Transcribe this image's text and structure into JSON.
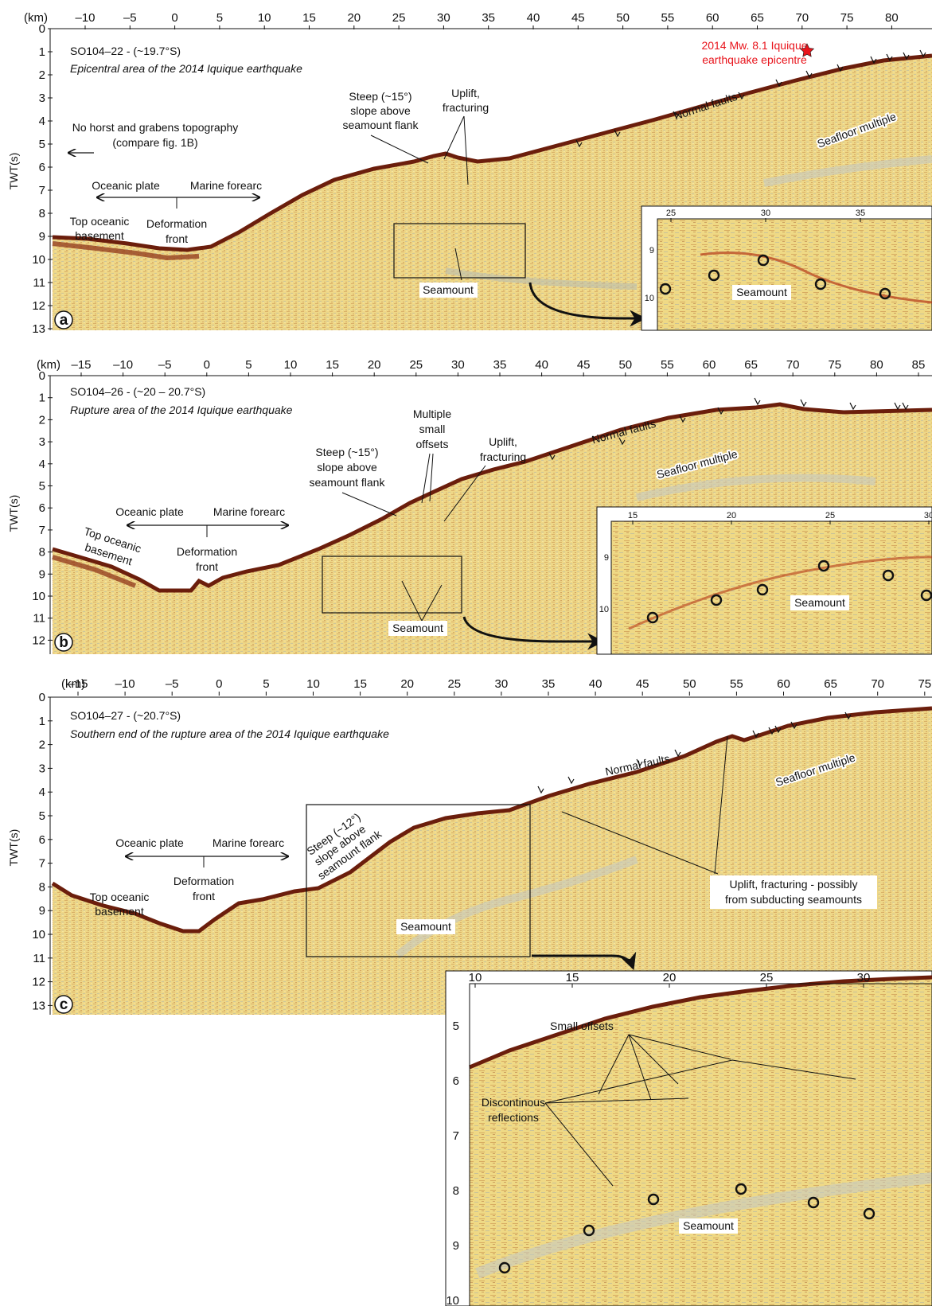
{
  "colors": {
    "seismic_base": "#eed787",
    "seismic_dark": "#8a3a16",
    "seafloor": "#6b1e0c",
    "annotation_red": "#e8131b",
    "ink": "#111111"
  },
  "panels": [
    {
      "letter": "a",
      "id": "SO104–22 - (~19.7°S)",
      "subtitle": "Epicentral area of the 2014 Iquique earthquake",
      "km_unit": "(km)",
      "km_ticks": [
        "–10",
        "–5",
        "0",
        "5",
        "10",
        "15",
        "20",
        "25",
        "30",
        "35",
        "40",
        "45",
        "50",
        "55",
        "60",
        "65",
        "70",
        "75",
        "80"
      ],
      "twt_ticks": [
        "0",
        "1",
        "2",
        "3",
        "4",
        "5",
        "6",
        "7",
        "8",
        "9",
        "10",
        "11",
        "12",
        "13"
      ],
      "ylabel": "TWT(s)",
      "labels": {
        "epicentre_1": "2014 Mw. 8.1 Iquique",
        "epicentre_2": "earthquake epicentre",
        "uplift_1": "Uplift,",
        "uplift_2": "fracturing",
        "steep_1": "Steep (~15°)",
        "steep_2": "slope above",
        "steep_3": "seamount flank",
        "normal_faults": "Normal faults",
        "seafloor_multiple": "Seafloor multiple",
        "no_horst_1": "No horst and grabens topography",
        "no_horst_2": "(compare fig. 1B)",
        "oceanic_plate": "Oceanic plate",
        "marine_forearc": "Marine forearc",
        "top_oceanic_1": "Top oceanic",
        "top_oceanic_2": "basement",
        "deformation_1": "Deformation",
        "deformation_2": "front",
        "seamount": "Seamount"
      },
      "inset": {
        "x_ticks": [
          "25",
          "30",
          "35"
        ],
        "y_ticks": [
          "9",
          "10"
        ],
        "seamount": "Seamount"
      }
    },
    {
      "letter": "b",
      "id": "SO104–26 - (~20 – 20.7°S)",
      "subtitle": "Rupture area of the 2014 Iquique earthquake",
      "km_unit": "(km)",
      "km_ticks": [
        "–15",
        "–10",
        "–5",
        "0",
        "5",
        "10",
        "15",
        "20",
        "25",
        "30",
        "35",
        "40",
        "45",
        "50",
        "55",
        "60",
        "65",
        "70",
        "75",
        "80",
        "85"
      ],
      "twt_ticks": [
        "0",
        "1",
        "2",
        "3",
        "4",
        "5",
        "6",
        "7",
        "8",
        "9",
        "10",
        "11",
        "12"
      ],
      "ylabel": "TWT(s)",
      "labels": {
        "multiple_1": "Multiple",
        "multiple_2": "small",
        "multiple_3": "offsets",
        "uplift_1": "Uplift,",
        "uplift_2": "fracturing",
        "steep_1": "Steep (~15°)",
        "steep_2": "slope above",
        "steep_3": "seamount flank",
        "normal_faults": "Normal faults",
        "seafloor_multiple": "Seafloor multiple",
        "oceanic_plate": "Oceanic plate",
        "marine_forearc": "Marine forearc",
        "top_oceanic_1": "Top oceanic",
        "top_oceanic_2": "basement",
        "deformation_1": "Deformation",
        "deformation_2": "front",
        "seamount": "Seamount"
      },
      "inset": {
        "x_ticks": [
          "15",
          "20",
          "25",
          "30"
        ],
        "y_ticks": [
          "9",
          "10"
        ],
        "seamount": "Seamount"
      }
    },
    {
      "letter": "c",
      "id": "SO104–27 - (~20.7°S)",
      "subtitle": "Southern end of the rupture area of the 2014 Iquique earthquake",
      "km_unit": "(km)",
      "km_ticks": [
        "–15",
        "–10",
        "–5",
        "0",
        "5",
        "10",
        "15",
        "20",
        "25",
        "30",
        "35",
        "40",
        "45",
        "50",
        "55",
        "60",
        "65",
        "70",
        "75"
      ],
      "twt_ticks": [
        "0",
        "1",
        "2",
        "3",
        "4",
        "5",
        "6",
        "7",
        "8",
        "9",
        "10",
        "11",
        "12",
        "13"
      ],
      "ylabel": "TWT(s)",
      "labels": {
        "normal_faults": "Normal faults",
        "seafloor_multiple": "Seafloor multiple",
        "steep_1": "Steep (~12°)",
        "steep_2": "slope above",
        "steep_3": "seamount flank",
        "oceanic_plate": "Oceanic plate",
        "marine_forearc": "Marine forearc",
        "top_oceanic_1": "Top oceanic",
        "top_oceanic_2": "basement",
        "deformation_1": "Deformation",
        "deformation_2": "front",
        "uplift_1": "Uplift, fracturing - possibly",
        "uplift_2": "from subducting seamounts",
        "seamount": "Seamount"
      },
      "inset": {
        "x_ticks": [
          "10",
          "15",
          "20",
          "25",
          "30"
        ],
        "y_ticks": [
          "5",
          "6",
          "7",
          "8",
          "9",
          "10"
        ],
        "small_offsets": "Small offsets",
        "discontinuous_1": "Discontinous",
        "discontinuous_2": "reflections",
        "seamount": "Seamount"
      }
    }
  ]
}
